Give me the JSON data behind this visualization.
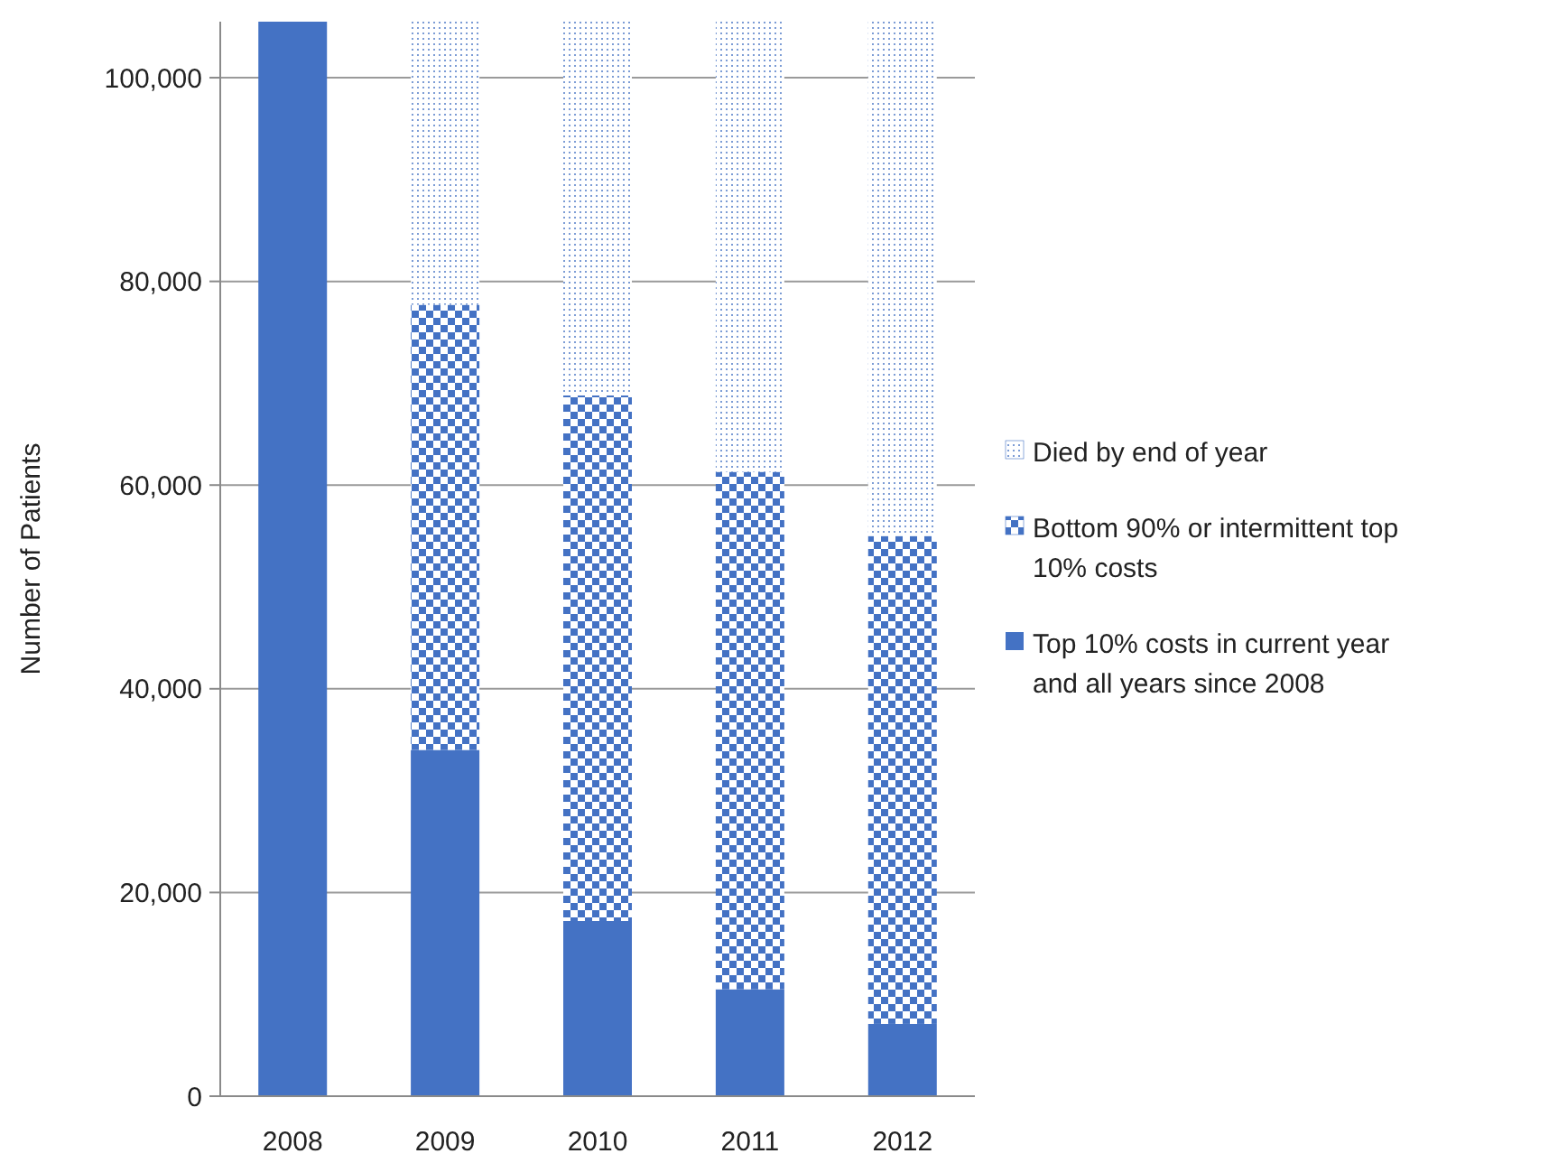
{
  "chart_data": {
    "type": "bar",
    "stacked": true,
    "ylabel": "Number of Patients",
    "categories": [
      "2008",
      "2009",
      "2010",
      "2011",
      "2012"
    ],
    "series": [
      {
        "name": "Top 10% costs in current year and all years since 2008",
        "color": "#4472c4",
        "values": [
          105500,
          34000,
          17200,
          10500,
          7100
        ]
      },
      {
        "name": "Bottom 90% or intermittent top 10% costs",
        "color": "#4472c4",
        "values": [
          null,
          43700,
          51600,
          50800,
          47900
        ]
      },
      {
        "name": "Died by end of year",
        "color": "#4472c4",
        "values": [
          null,
          27800,
          36700,
          44200,
          50500
        ]
      }
    ],
    "ylim": [
      0,
      105500
    ],
    "yticks": [
      0,
      {
        "value": 20000,
        "label": "20,000"
      },
      {
        "value": 40000,
        "label": "40,000"
      },
      {
        "value": 60000,
        "label": "60,000"
      },
      {
        "value": 80000,
        "label": "80,000"
      },
      {
        "value": 100000,
        "label": "100,000"
      }
    ],
    "grid": "y",
    "legend": "right"
  }
}
